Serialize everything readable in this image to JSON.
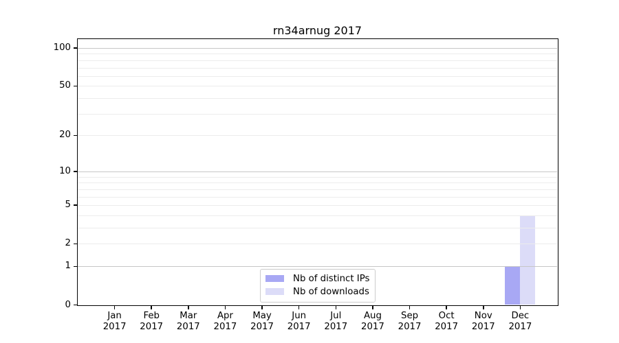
{
  "chart_data": {
    "type": "bar",
    "title": "rn34arnug 2017",
    "categories": [
      "Jan 2017",
      "Feb 2017",
      "Mar 2017",
      "Apr 2017",
      "May 2017",
      "Jun 2017",
      "Jul 2017",
      "Aug 2017",
      "Sep 2017",
      "Oct 2017",
      "Nov 2017",
      "Dec 2017"
    ],
    "series": [
      {
        "name": "Nb of distinct IPs",
        "slug": "distinct-ips",
        "color": "#a8a8f4",
        "values": [
          0,
          0,
          0,
          0,
          0,
          0,
          0,
          0,
          0,
          0,
          0,
          1
        ]
      },
      {
        "name": "Nb of downloads",
        "slug": "downloads",
        "color": "#dcdcf8",
        "values": [
          0,
          0,
          0,
          0,
          0,
          0,
          0,
          0,
          0,
          0,
          0,
          4
        ]
      }
    ],
    "xlabel": "",
    "ylabel": "",
    "y_axis": {
      "scale": "log10(1+x)",
      "ylim": [
        0,
        118
      ],
      "tick_values": [
        0,
        1,
        2,
        5,
        10,
        20,
        50,
        100
      ],
      "tick_labels": [
        "0",
        "1",
        "2",
        "5",
        "10",
        "20",
        "50",
        "100"
      ],
      "major_gridlines": [
        1,
        10,
        100
      ],
      "minor_gridlines": [
        2,
        3,
        4,
        5,
        6,
        7,
        8,
        9,
        20,
        30,
        40,
        50,
        60,
        70,
        80,
        90
      ]
    },
    "grid": "on",
    "legend": {
      "position": "bottom-center",
      "entries": [
        "Nb of distinct IPs",
        "Nb of downloads"
      ]
    },
    "palette": {
      "bar_distinct_ips": "#a8a8f4",
      "bar_downloads": "#dcdcf8",
      "major_gridline": "#c6c6c6",
      "minor_gridline": "#ececec",
      "axis": "#000000",
      "text": "#000000",
      "legend_border": "#cccccc",
      "background": "#ffffff"
    }
  }
}
